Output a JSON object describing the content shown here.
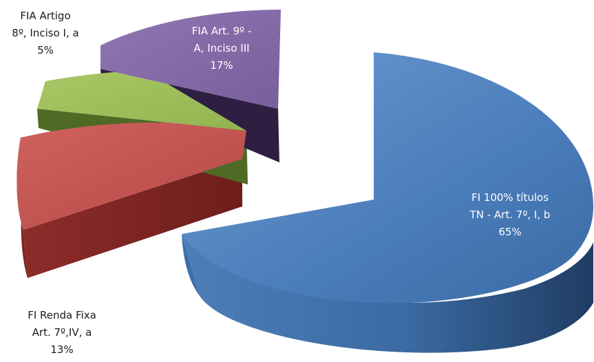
{
  "chart_data": {
    "type": "pie",
    "style": "3d-exploded",
    "title": "",
    "slices": [
      {
        "label_lines": [
          "FI 100% títulos",
          "TN - Art. 7º, I, b",
          "65%"
        ],
        "value": 65,
        "color": "#4F81BD"
      },
      {
        "label_lines": [
          "FI  Renda Fixa",
          "Art. 7º,IV,  a",
          "13%"
        ],
        "value": 13,
        "color": "#C0504D"
      },
      {
        "label_lines": [
          "FIA Artigo",
          "8º, Inciso I, a",
          "5%"
        ],
        "value": 5,
        "color": "#9BBB59"
      },
      {
        "label_lines": [
          "FIA Art. 9º -",
          "A, Inciso III",
          "17%"
        ],
        "value": 17,
        "color": "#8064A2"
      }
    ]
  }
}
